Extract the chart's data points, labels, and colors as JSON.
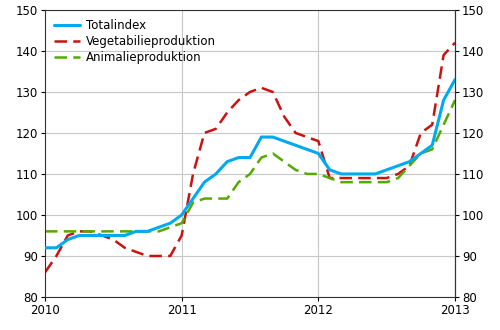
{
  "xlim": [
    0,
    36
  ],
  "ylim": [
    80,
    150
  ],
  "xtick_positions": [
    0,
    12,
    24,
    36
  ],
  "xtick_labels": [
    "2010",
    "2011",
    "2012",
    "2013"
  ],
  "ytick_positions": [
    80,
    90,
    100,
    110,
    120,
    130,
    140,
    150
  ],
  "grid_color": "#c8c8c8",
  "background_color": "#ffffff",
  "totalindex": [
    92,
    92,
    94,
    95,
    95,
    95,
    95,
    95,
    96,
    96,
    97,
    98,
    100,
    104,
    108,
    110,
    113,
    114,
    114,
    119,
    119,
    118,
    117,
    116,
    115,
    111,
    110,
    110,
    110,
    110,
    111,
    112,
    113,
    115,
    117,
    128,
    133
  ],
  "vegetabilie": [
    86,
    90,
    95,
    96,
    96,
    95,
    94,
    92,
    91,
    90,
    90,
    90,
    95,
    110,
    120,
    121,
    125,
    128,
    130,
    131,
    130,
    124,
    120,
    119,
    118,
    109,
    109,
    109,
    109,
    109,
    109,
    110,
    112,
    120,
    122,
    139,
    142
  ],
  "animalieproduktion": [
    96,
    96,
    96,
    96,
    96,
    96,
    96,
    96,
    96,
    96,
    96,
    97,
    98,
    103,
    104,
    104,
    104,
    108,
    110,
    114,
    115,
    113,
    111,
    110,
    110,
    109,
    108,
    108,
    108,
    108,
    108,
    109,
    112,
    115,
    116,
    122,
    128
  ],
  "totalindex_color": "#00aaee",
  "vegetabilie_color": "#cc1111",
  "animalieproduktion_color": "#55aa00",
  "legend_labels": [
    "Totalindex",
    "Vegetabilieproduktion",
    "Animalieproduktion"
  ],
  "tick_fontsize": 8.5,
  "legend_fontsize": 8.5
}
